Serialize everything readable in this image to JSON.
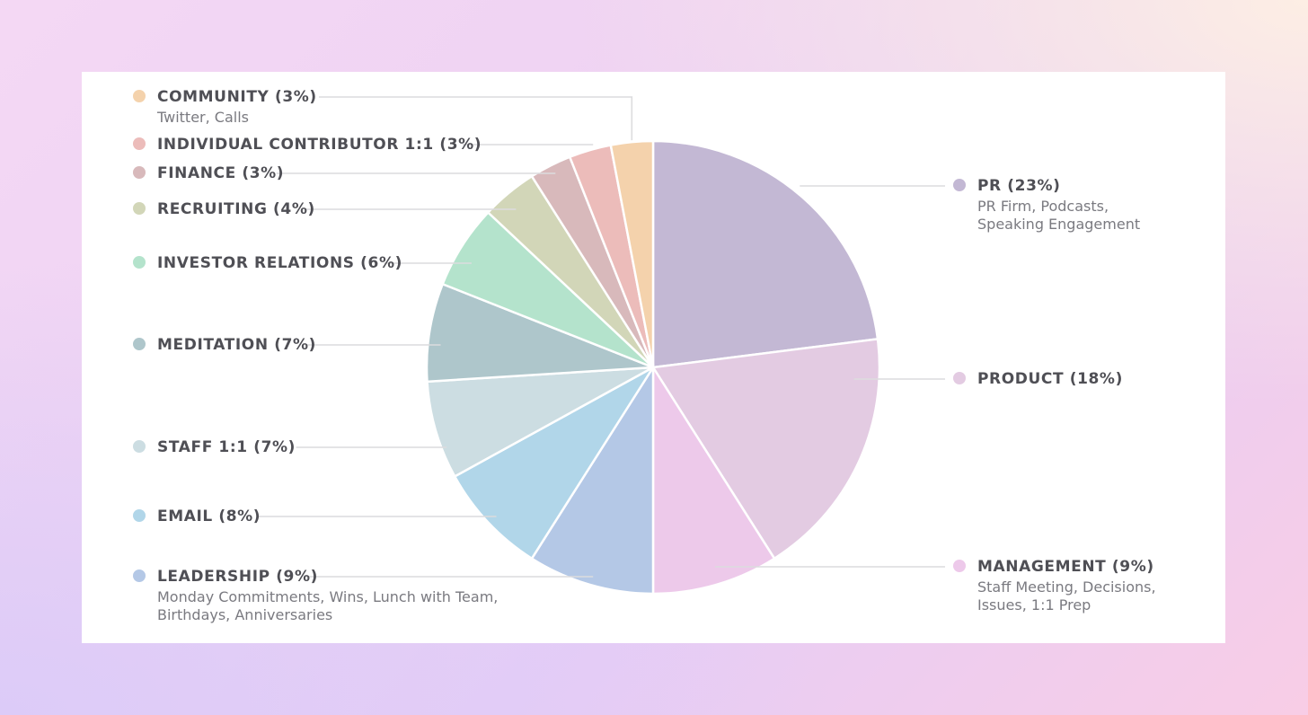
{
  "chart_data": {
    "type": "pie",
    "start_angle_deg": 0,
    "direction": "clockwise",
    "slices": [
      {
        "label": "PR (23%)",
        "value": 23,
        "color": "#c3b8d4",
        "details": [
          "PR Firm, Podcasts,",
          "Speaking Engagement"
        ],
        "side": "right"
      },
      {
        "label": "PRODUCT (18%)",
        "value": 18,
        "color": "#e3cbe2",
        "details": [],
        "side": "right"
      },
      {
        "label": "MANAGEMENT (9%)",
        "value": 9,
        "color": "#edc9ea",
        "details": [
          "Staff Meeting, Decisions,",
          "Issues, 1:1 Prep"
        ],
        "side": "right"
      },
      {
        "label": "LEADERSHIP (9%)",
        "value": 9,
        "color": "#b4c8e6",
        "details": [
          "Monday Commitments, Wins, Lunch with Team,",
          "Birthdays, Anniversaries"
        ],
        "side": "left"
      },
      {
        "label": "EMAIL (8%)",
        "value": 8,
        "color": "#b1d6e9",
        "details": [],
        "side": "left"
      },
      {
        "label": "STAFF 1:1 (7%)",
        "value": 7,
        "color": "#ccdde2",
        "details": [],
        "side": "left"
      },
      {
        "label": "MEDITATION (7%)",
        "value": 7,
        "color": "#aec6cb",
        "details": [],
        "side": "left"
      },
      {
        "label": "INVESTOR RELATIONS (6%)",
        "value": 6,
        "color": "#b4e3cc",
        "details": [],
        "side": "left"
      },
      {
        "label": "RECRUITING (4%)",
        "value": 4,
        "color": "#d2d6b8",
        "details": [],
        "side": "left"
      },
      {
        "label": "FINANCE (3%)",
        "value": 3,
        "color": "#d8b9bb",
        "details": [],
        "side": "left"
      },
      {
        "label": "INDIVIDUAL CONTRIBUTOR 1:1 (3%)",
        "value": 3,
        "color": "#ecbcba",
        "details": [],
        "side": "left"
      },
      {
        "label": "COMMUNITY (3%)",
        "value": 3,
        "color": "#f4d2ac",
        "details": [
          "Twitter, Calls"
        ],
        "side": "left"
      }
    ]
  }
}
